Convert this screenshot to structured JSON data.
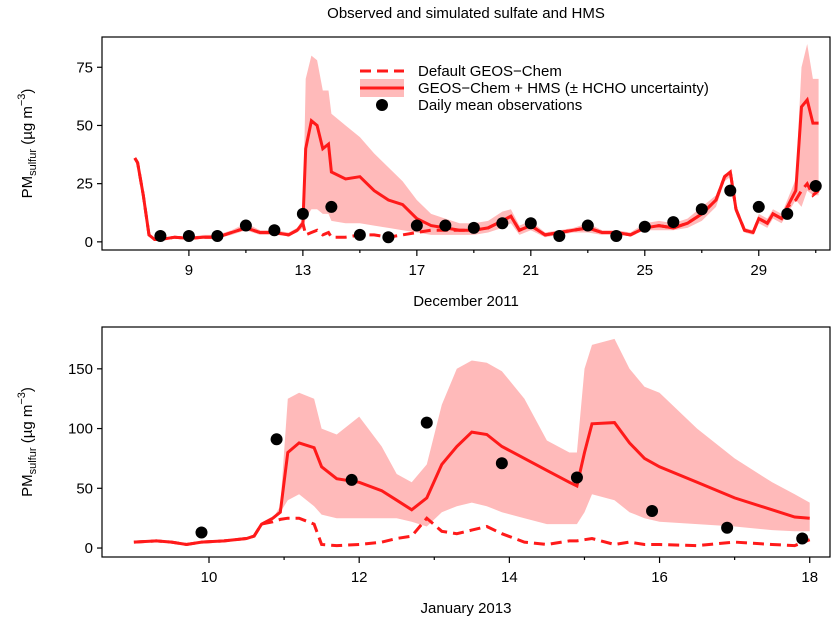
{
  "chart_data": [
    {
      "type": "line",
      "title": "Observed and simulated sulfate and HMS",
      "xlabel": "December 2011",
      "ylabel": {
        "base": "PM",
        "sub": "sulfur",
        "unit": " (µg m",
        "sup": "−3",
        "close": ")"
      },
      "xlim": [
        5.95,
        31.5
      ],
      "ylim": [
        -3.5,
        88
      ],
      "xticks": [
        9,
        13,
        17,
        21,
        25,
        29
      ],
      "xminorticks": [
        11,
        15,
        19,
        23,
        27,
        31
      ],
      "yticks": [
        0,
        25,
        50,
        75
      ],
      "legend": "upper right",
      "series": [
        {
          "name": "Default GEOS−Chem",
          "color": "#ff1a1a",
          "style": "dashed",
          "x": [
            7.1,
            7.2,
            7.4,
            7.6,
            7.8,
            8,
            8.5,
            9,
            9.5,
            10,
            10.5,
            11,
            11.5,
            12,
            12.5,
            12.8,
            13,
            13.1,
            13.3,
            13.5,
            13.7,
            13.9,
            14,
            14.5,
            15,
            15.5,
            16,
            16.5,
            17,
            17.5,
            18,
            18.5,
            19,
            19.5,
            20,
            20.3,
            20.6,
            21,
            21.5,
            22,
            22.5,
            23,
            23.5,
            24,
            24.5,
            25,
            25.5,
            26,
            26.5,
            27,
            27.5,
            27.8,
            28,
            28.2,
            28.5,
            28.8,
            29,
            29.3,
            29.5,
            29.8,
            30,
            30.3,
            30.5,
            30.7,
            30.9,
            31.1
          ],
          "values": [
            36,
            34,
            20,
            3,
            1,
            1,
            2,
            1.5,
            2,
            2,
            4,
            6,
            4,
            4,
            3,
            5,
            8,
            3,
            4,
            5,
            3,
            4,
            2,
            2,
            3,
            3,
            2,
            3,
            4,
            5,
            5,
            5,
            5,
            6,
            9,
            11,
            5,
            7,
            3,
            4,
            5,
            6,
            4,
            4,
            3,
            6,
            7,
            6,
            8,
            12,
            18,
            28,
            30,
            14,
            5,
            4,
            10,
            8,
            12,
            10,
            15,
            18,
            22,
            25,
            20,
            22
          ]
        },
        {
          "name": "GEOS−Chem + HMS (± HCHO uncertainty)",
          "color": "#ff1a1a",
          "style": "solid",
          "band_color": "#ffbaba",
          "x": [
            7.1,
            7.2,
            7.4,
            7.6,
            7.8,
            8,
            8.5,
            9,
            9.5,
            10,
            10.5,
            11,
            11.5,
            12,
            12.5,
            12.8,
            13,
            13.1,
            13.3,
            13.5,
            13.7,
            13.9,
            14,
            14.5,
            15,
            15.5,
            16,
            16.5,
            17,
            17.5,
            18,
            18.5,
            19,
            19.5,
            20,
            20.3,
            20.6,
            21,
            21.5,
            22,
            22.5,
            23,
            23.5,
            24,
            24.5,
            25,
            25.5,
            26,
            26.5,
            27,
            27.5,
            27.8,
            28,
            28.2,
            28.5,
            28.8,
            29,
            29.3,
            29.5,
            29.8,
            30,
            30.3,
            30.5,
            30.7,
            30.9,
            31.1
          ],
          "values": [
            36,
            34,
            20,
            3,
            1,
            1,
            2,
            1.5,
            2,
            2,
            4,
            6,
            4,
            4,
            3,
            5,
            8,
            40,
            52,
            50,
            40,
            42,
            30,
            27,
            28,
            22,
            18,
            16,
            10,
            7,
            6,
            5,
            5,
            6,
            9,
            11,
            5,
            7,
            3,
            4,
            5,
            6,
            4,
            4,
            3,
            6,
            7,
            6,
            8,
            12,
            18,
            28,
            30,
            14,
            5,
            4,
            10,
            8,
            12,
            10,
            15,
            22,
            58,
            61,
            51,
            51
          ],
          "lower": [
            36,
            34,
            20,
            3,
            1,
            1,
            1.5,
            1,
            1.5,
            1.5,
            3,
            5,
            3,
            3,
            2.5,
            4,
            6,
            10,
            14,
            14,
            12,
            12,
            9,
            8,
            8,
            7,
            6,
            5,
            4,
            3,
            3,
            3,
            3,
            4,
            6,
            8,
            3,
            5,
            2,
            3,
            4,
            4,
            3,
            3,
            2.5,
            5,
            5,
            5,
            6,
            9,
            15,
            26,
            28,
            12,
            4,
            3,
            8,
            6,
            10,
            8,
            12,
            18,
            15,
            22,
            20,
            20
          ],
          "upper": [
            36,
            34,
            20,
            3,
            1,
            1,
            2,
            2,
            3,
            3,
            5,
            8,
            5,
            5,
            4,
            6,
            10,
            70,
            80,
            78,
            65,
            65,
            55,
            50,
            45,
            38,
            32,
            26,
            18,
            12,
            10,
            8,
            8,
            9,
            13,
            14,
            7,
            9,
            4,
            5,
            6,
            8,
            5,
            5,
            4,
            8,
            9,
            8,
            10,
            15,
            20,
            29,
            30,
            16,
            6,
            5,
            12,
            10,
            14,
            12,
            18,
            27,
            75,
            85,
            70,
            70
          ]
        },
        {
          "name": "Daily mean observations",
          "color": "#000000",
          "style": "points",
          "x": [
            8,
            9,
            10,
            11,
            12,
            13,
            14,
            15,
            16,
            17,
            18,
            19,
            20,
            21,
            22,
            23,
            24,
            25,
            26,
            27,
            28,
            29,
            30,
            31
          ],
          "values": [
            2.5,
            2.5,
            2.5,
            7,
            5,
            12,
            15,
            3,
            2,
            7,
            7,
            6,
            8,
            8,
            2.5,
            7,
            2.5,
            6.5,
            8.5,
            14,
            22,
            15,
            12,
            24
          ]
        }
      ]
    },
    {
      "type": "line",
      "xlabel": "January 2013",
      "ylabel": {
        "base": "PM",
        "sub": "sulfur",
        "unit": " (µg m",
        "sup": "−3",
        "close": ")"
      },
      "xlim": [
        8.575,
        18.27
      ],
      "ylim": [
        -7.5,
        185
      ],
      "xticks": [
        10,
        12,
        14,
        16,
        18
      ],
      "xminorticks": [
        11,
        13,
        15,
        17
      ],
      "yticks": [
        0,
        50,
        100,
        150
      ],
      "series": [
        {
          "color": "#ff1a1a",
          "style": "dashed",
          "x": [
            9,
            9.3,
            9.5,
            9.7,
            9.9,
            10.2,
            10.5,
            10.6,
            10.7,
            10.85,
            10.95,
            11.05,
            11.2,
            11.4,
            11.5,
            11.7,
            12,
            12.3,
            12.5,
            12.7,
            12.9,
            13.1,
            13.3,
            13.5,
            13.7,
            13.9,
            14.2,
            14.5,
            14.8,
            14.9,
            15.0,
            15.1,
            15.4,
            15.6,
            15.8,
            16,
            16.5,
            17,
            17.5,
            17.8,
            18
          ],
          "values": [
            5,
            6,
            5,
            3,
            5,
            6,
            8,
            10,
            20,
            22,
            24,
            25,
            25,
            20,
            3,
            2,
            3,
            5,
            8,
            10,
            25,
            14,
            12,
            15,
            18,
            12,
            5,
            3,
            6,
            6,
            7,
            8,
            3,
            5,
            3,
            3,
            2,
            5,
            3,
            2,
            7
          ]
        },
        {
          "color": "#ff1a1a",
          "style": "solid",
          "band_color": "#ffbaba",
          "x": [
            9,
            9.3,
            9.5,
            9.7,
            9.9,
            10.2,
            10.5,
            10.6,
            10.7,
            10.85,
            10.95,
            11.05,
            11.2,
            11.4,
            11.5,
            11.7,
            12,
            12.3,
            12.5,
            12.7,
            12.9,
            13.1,
            13.3,
            13.5,
            13.7,
            13.9,
            14.2,
            14.5,
            14.8,
            14.9,
            15.0,
            15.1,
            15.4,
            15.6,
            15.8,
            16,
            16.5,
            17,
            17.5,
            17.8,
            18
          ],
          "values": [
            5,
            6,
            5,
            3,
            5,
            6,
            8,
            10,
            20,
            25,
            30,
            80,
            88,
            84,
            68,
            58,
            55,
            48,
            40,
            32,
            42,
            70,
            85,
            97,
            95,
            85,
            75,
            65,
            55,
            52,
            80,
            104,
            105,
            88,
            75,
            68,
            55,
            42,
            32,
            26,
            25
          ],
          "lower": [
            5,
            6,
            5,
            3,
            5,
            6,
            8,
            10,
            20,
            25,
            30,
            40,
            45,
            35,
            28,
            25,
            25,
            25,
            25,
            22,
            18,
            30,
            35,
            38,
            35,
            30,
            25,
            20,
            20,
            20,
            30,
            45,
            40,
            30,
            25,
            22,
            20,
            18,
            15,
            14,
            14
          ],
          "upper": [
            5,
            6,
            5,
            3,
            5,
            6,
            8,
            10,
            20,
            25,
            35,
            125,
            130,
            125,
            100,
            95,
            110,
            85,
            62,
            55,
            70,
            120,
            150,
            157,
            155,
            148,
            125,
            90,
            80,
            80,
            150,
            170,
            175,
            150,
            135,
            130,
            100,
            75,
            55,
            45,
            38
          ]
        },
        {
          "color": "#000000",
          "style": "points",
          "x": [
            9.9,
            10.9,
            11.9,
            12.9,
            13.9,
            14.9,
            15.9,
            16.9,
            17.9
          ],
          "values": [
            13,
            91,
            57,
            105,
            71,
            59,
            31,
            17,
            8
          ]
        }
      ]
    }
  ]
}
